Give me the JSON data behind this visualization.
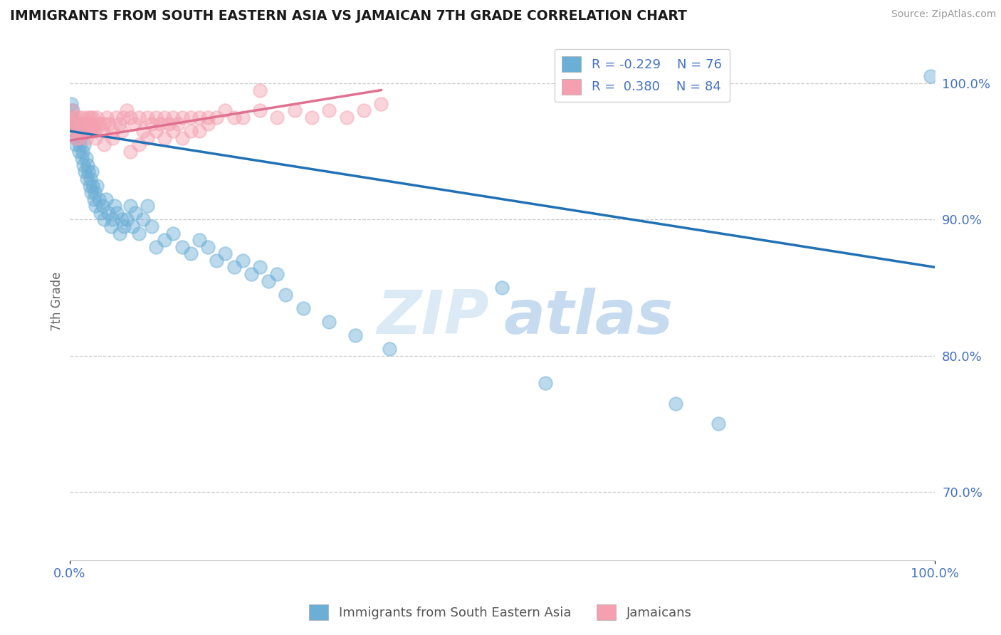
{
  "title": "IMMIGRANTS FROM SOUTH EASTERN ASIA VS JAMAICAN 7TH GRADE CORRELATION CHART",
  "source": "Source: ZipAtlas.com",
  "ylabel": "7th Grade",
  "right_yticks": [
    70.0,
    80.0,
    90.0,
    100.0
  ],
  "xlim": [
    0.0,
    100.0
  ],
  "ylim": [
    65.0,
    103.0
  ],
  "legend_blue_R": "-0.229",
  "legend_blue_N": "76",
  "legend_pink_R": "0.380",
  "legend_pink_N": "84",
  "blue_color": "#6baed6",
  "pink_color": "#f4a0b0",
  "blue_line_color": "#2171b5",
  "pink_line_color": "#e07090",
  "watermark_zip": "ZIP",
  "watermark_atlas": "atlas",
  "blue_scatter_x": [
    0.2,
    0.3,
    0.4,
    0.5,
    0.6,
    0.7,
    0.8,
    0.9,
    1.0,
    1.1,
    1.2,
    1.3,
    1.4,
    1.5,
    1.6,
    1.7,
    1.8,
    1.9,
    2.0,
    2.1,
    2.2,
    2.3,
    2.4,
    2.5,
    2.6,
    2.7,
    2.8,
    2.9,
    3.0,
    3.2,
    3.4,
    3.6,
    3.8,
    4.0,
    4.2,
    4.5,
    4.8,
    5.0,
    5.2,
    5.5,
    5.8,
    6.0,
    6.3,
    6.6,
    7.0,
    7.3,
    7.6,
    8.0,
    8.5,
    9.0,
    9.5,
    10.0,
    11.0,
    12.0,
    13.0,
    14.0,
    15.0,
    16.0,
    17.0,
    18.0,
    19.0,
    20.0,
    21.0,
    22.0,
    23.0,
    24.0,
    25.0,
    27.0,
    30.0,
    33.0,
    37.0,
    50.0,
    55.0,
    70.0,
    75.0,
    99.5
  ],
  "blue_scatter_y": [
    98.5,
    97.5,
    98.0,
    96.5,
    97.0,
    95.5,
    96.0,
    97.0,
    96.5,
    95.0,
    95.5,
    96.0,
    94.5,
    95.0,
    94.0,
    95.5,
    93.5,
    94.5,
    93.0,
    94.0,
    93.5,
    92.5,
    93.0,
    92.0,
    93.5,
    92.5,
    91.5,
    92.0,
    91.0,
    92.5,
    91.5,
    90.5,
    91.0,
    90.0,
    91.5,
    90.5,
    89.5,
    90.0,
    91.0,
    90.5,
    89.0,
    90.0,
    89.5,
    90.0,
    91.0,
    89.5,
    90.5,
    89.0,
    90.0,
    91.0,
    89.5,
    88.0,
    88.5,
    89.0,
    88.0,
    87.5,
    88.5,
    88.0,
    87.0,
    87.5,
    86.5,
    87.0,
    86.0,
    86.5,
    85.5,
    86.0,
    84.5,
    83.5,
    82.5,
    81.5,
    80.5,
    85.0,
    78.0,
    76.5,
    75.0,
    100.5
  ],
  "pink_scatter_x": [
    0.1,
    0.2,
    0.3,
    0.4,
    0.5,
    0.6,
    0.7,
    0.8,
    0.9,
    1.0,
    1.1,
    1.2,
    1.3,
    1.4,
    1.5,
    1.6,
    1.7,
    1.8,
    1.9,
    2.0,
    2.1,
    2.2,
    2.3,
    2.4,
    2.5,
    2.6,
    2.7,
    2.8,
    2.9,
    3.0,
    3.2,
    3.5,
    3.8,
    4.0,
    4.3,
    4.6,
    5.0,
    5.4,
    5.8,
    6.2,
    6.6,
    7.0,
    7.5,
    8.0,
    8.5,
    9.0,
    9.5,
    10.0,
    10.5,
    11.0,
    11.5,
    12.0,
    12.5,
    13.0,
    14.0,
    15.0,
    16.0,
    17.0,
    18.0,
    19.0,
    20.0,
    22.0,
    24.0,
    26.0,
    28.0,
    30.0,
    32.0,
    34.0,
    36.0,
    22.0,
    3.0,
    4.0,
    5.0,
    6.0,
    7.0,
    8.0,
    9.0,
    10.0,
    11.0,
    12.0,
    13.0,
    14.0,
    15.0,
    16.0
  ],
  "pink_scatter_y": [
    97.0,
    97.5,
    98.0,
    97.0,
    96.5,
    97.5,
    96.0,
    97.0,
    96.5,
    97.5,
    96.0,
    96.5,
    97.0,
    96.5,
    97.5,
    97.0,
    96.5,
    97.0,
    96.0,
    96.5,
    97.5,
    96.5,
    97.0,
    97.5,
    96.5,
    97.0,
    97.5,
    96.5,
    97.0,
    96.5,
    97.5,
    97.0,
    96.5,
    97.0,
    97.5,
    97.0,
    96.5,
    97.5,
    97.0,
    97.5,
    98.0,
    97.5,
    97.0,
    97.5,
    96.5,
    97.5,
    97.0,
    97.5,
    97.0,
    97.5,
    97.0,
    97.5,
    97.0,
    97.5,
    97.5,
    97.5,
    97.5,
    97.5,
    98.0,
    97.5,
    97.5,
    98.0,
    97.5,
    98.0,
    97.5,
    98.0,
    97.5,
    98.0,
    98.5,
    99.5,
    96.0,
    95.5,
    96.0,
    96.5,
    95.0,
    95.5,
    96.0,
    96.5,
    96.0,
    96.5,
    96.0,
    96.5,
    96.5,
    97.0
  ],
  "blue_trend_x": [
    0.0,
    100.0
  ],
  "blue_trend_y": [
    96.5,
    86.5
  ],
  "pink_trend_x": [
    0.0,
    36.0
  ],
  "pink_trend_y": [
    95.8,
    99.5
  ]
}
